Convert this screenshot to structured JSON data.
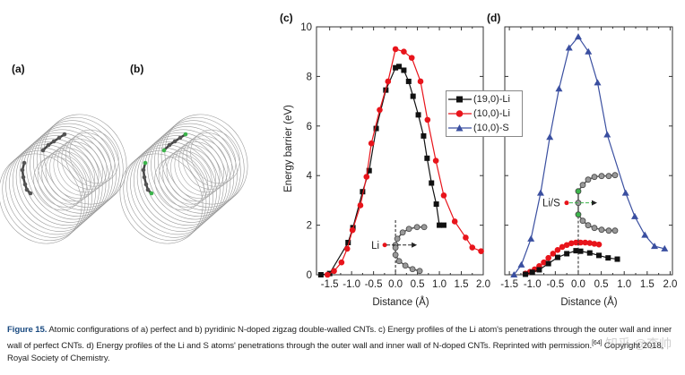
{
  "panels": {
    "a": "(a)",
    "b": "(b)",
    "c": "(c)",
    "d": "(d)"
  },
  "inset_labels": {
    "c": "Li",
    "d": "Li/S"
  },
  "colors": {
    "black_series": "#111111",
    "red_series": "#e8141b",
    "blue_series": "#3a4fa0",
    "dopant": "#3cb44b",
    "carbon": "#777777"
  },
  "chart_data": [
    {
      "type": "line",
      "panel": "(c)",
      "xlabel": "Distance (Å)",
      "ylabel": "Energy barrier (eV)",
      "xlim": [
        -1.8,
        2.0
      ],
      "ylim": [
        0,
        10
      ],
      "xticks": [
        "-1.5",
        "-1.0",
        "-0.5",
        "0.0",
        "0.5",
        "1.0",
        "1.5",
        "2.0"
      ],
      "xtick_values": [
        -1.5,
        -1.0,
        -0.5,
        0.0,
        0.5,
        1.0,
        1.5,
        2.0
      ],
      "yticks": [
        "0",
        "2",
        "4",
        "6",
        "8",
        "10"
      ],
      "ytick_values": [
        0,
        2,
        4,
        6,
        8,
        10
      ],
      "series": [
        {
          "name": "(19,0)-Li",
          "color": "#111111",
          "marker": "square",
          "x": [
            -1.7,
            -1.5,
            -1.08,
            -0.97,
            -0.75,
            -0.6,
            -0.44,
            -0.22,
            0.0,
            0.08,
            0.19,
            0.3,
            0.4,
            0.52,
            0.64,
            0.72,
            0.82,
            0.93,
            1.0,
            1.1
          ],
          "y": [
            0,
            0.05,
            1.3,
            1.9,
            3.35,
            4.2,
            5.9,
            7.45,
            8.35,
            8.4,
            8.25,
            7.8,
            7.2,
            6.45,
            5.6,
            4.7,
            3.7,
            2.85,
            2.0,
            2.0
          ]
        },
        {
          "name": "(10,0)-Li",
          "color": "#e8141b",
          "marker": "circle",
          "x": [
            -1.55,
            -1.4,
            -1.23,
            -1.1,
            -0.98,
            -0.8,
            -0.66,
            -0.55,
            -0.36,
            -0.17,
            0.0,
            0.19,
            0.37,
            0.57,
            0.73,
            0.92,
            1.1,
            1.35,
            1.6,
            1.75,
            1.95
          ],
          "y": [
            0,
            0.15,
            0.5,
            1.05,
            1.8,
            2.8,
            3.95,
            5.3,
            6.65,
            7.8,
            9.1,
            9.0,
            8.75,
            7.8,
            6.25,
            4.6,
            3.2,
            2.15,
            1.5,
            1.1,
            0.95
          ]
        }
      ],
      "legend": {
        "position": "right",
        "entries": [
          "(19,0)-Li",
          "(10,0)-Li",
          "(10,0)-S"
        ]
      }
    },
    {
      "type": "line",
      "panel": "(d)",
      "xlabel": "Distance (Å)",
      "xlim": [
        -1.6,
        2.05
      ],
      "ylim": [
        0,
        10
      ],
      "xticks": [
        "-1.5",
        "-1.0",
        "-0.5",
        "0.0",
        "0.5",
        "1.0",
        "1.5",
        "2.0"
      ],
      "xtick_values": [
        -1.5,
        -1.0,
        -0.5,
        0.0,
        0.5,
        1.0,
        1.5,
        2.0
      ],
      "ytick_values": [
        0,
        2,
        4,
        6,
        8,
        10
      ],
      "series": [
        {
          "name": "(10,0)-S",
          "color": "#3a4fa0",
          "marker": "triangle",
          "x": [
            -1.4,
            -1.24,
            -1.03,
            -0.82,
            -0.62,
            -0.42,
            -0.2,
            0.0,
            0.22,
            0.42,
            0.63,
            1.03,
            1.23,
            1.45,
            1.66,
            1.88
          ],
          "y": [
            0,
            0.4,
            1.45,
            3.3,
            5.55,
            7.5,
            9.15,
            9.6,
            9.0,
            7.75,
            5.65,
            3.3,
            2.35,
            1.6,
            1.15,
            1.05
          ]
        },
        {
          "name": "(10,0)-Li",
          "color": "#e8141b",
          "marker": "circle",
          "x": [
            -1.15,
            -1.05,
            -0.95,
            -0.85,
            -0.75,
            -0.65,
            -0.55,
            -0.45,
            -0.35,
            -0.25,
            -0.15,
            -0.05,
            0.05,
            0.15,
            0.25,
            0.35,
            0.45
          ],
          "y": [
            0.05,
            0.12,
            0.22,
            0.35,
            0.5,
            0.68,
            0.85,
            1.0,
            1.12,
            1.2,
            1.27,
            1.3,
            1.3,
            1.3,
            1.28,
            1.25,
            1.22
          ]
        },
        {
          "name": "(19,0)-Li",
          "color": "#111111",
          "marker": "square",
          "x": [
            -1.15,
            -1.0,
            -0.85,
            -0.65,
            -0.45,
            -0.25,
            -0.05,
            0.05,
            0.25,
            0.45,
            0.65,
            0.85
          ],
          "y": [
            0.02,
            0.1,
            0.2,
            0.45,
            0.7,
            0.85,
            0.97,
            0.95,
            0.88,
            0.78,
            0.68,
            0.63
          ]
        }
      ]
    }
  ],
  "caption": {
    "label": "Figure 15.",
    "text": " Atomic configurations of a) perfect and b) pyridinic N-doped zigzag double-walled CNTs. c) Energy profiles of the Li atom's penetrations through the outer wall and inner wall of perfect CNTs. d) Energy profiles of the Li and S atoms' penetrations through the outer wall and inner wall of N-doped CNTs. Reprinted with permission.",
    "ref": "[64]",
    "copyright": " Copyright 2018, Royal Society of Chemistry."
  },
  "watermark": "知乎 @李帅"
}
